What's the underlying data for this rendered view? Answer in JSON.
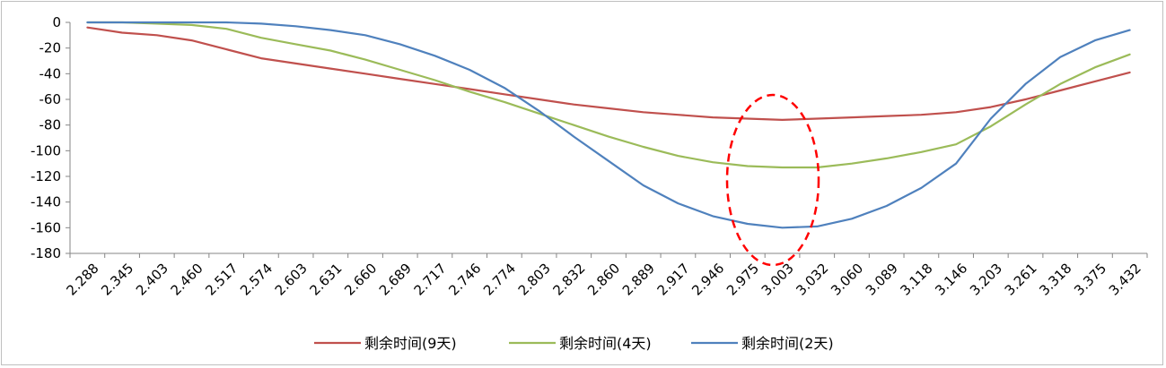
{
  "chart_data": {
    "type": "line",
    "title": "",
    "xlabel": "",
    "ylabel": "",
    "ylim": [
      -180,
      0
    ],
    "yticks": [
      0,
      -20,
      -40,
      -60,
      -80,
      -100,
      -120,
      -140,
      -160,
      -180
    ],
    "grid": false,
    "legend_position": "bottom",
    "categories": [
      "2.288",
      "2.345",
      "2.403",
      "2.460",
      "2.517",
      "2.574",
      "2.603",
      "2.631",
      "2.660",
      "2.689",
      "2.717",
      "2.746",
      "2.774",
      "2.803",
      "2.832",
      "2.860",
      "2.889",
      "2.917",
      "2.946",
      "2.975",
      "3.003",
      "3.032",
      "3.060",
      "3.089",
      "3.118",
      "3.146",
      "3.203",
      "3.261",
      "3.318",
      "3.375",
      "3.432"
    ],
    "series": [
      {
        "name": "剩余时间(9天)",
        "color": "#c0504d",
        "values": [
          -4,
          -8,
          -10,
          -14,
          -21,
          -28,
          -32,
          -36,
          -40,
          -44,
          -48,
          -52,
          -56,
          -60,
          -64,
          -67,
          -70,
          -72,
          -74,
          -75,
          -76,
          -75,
          -74,
          -73,
          -72,
          -70,
          -66,
          -60,
          -53,
          -46,
          -39
        ]
      },
      {
        "name": "剩余时间(4天)",
        "color": "#9bbb59",
        "values": [
          0,
          0,
          -1,
          -2,
          -5,
          -12,
          -17,
          -22,
          -29,
          -37,
          -45,
          -54,
          -62,
          -71,
          -80,
          -89,
          -97,
          -104,
          -109,
          -112,
          -113,
          -113,
          -110,
          -106,
          -101,
          -95,
          -81,
          -64,
          -48,
          -35,
          -25
        ]
      },
      {
        "name": "剩余时间(2天)",
        "color": "#4f81bd",
        "values": [
          0,
          0,
          0,
          0,
          0,
          -1,
          -3,
          -6,
          -10,
          -17,
          -26,
          -37,
          -51,
          -69,
          -89,
          -108,
          -127,
          -141,
          -151,
          -157,
          -160,
          -159,
          -153,
          -143,
          -129,
          -110,
          -75,
          -48,
          -27,
          -14,
          -6
        ]
      }
    ]
  }
}
